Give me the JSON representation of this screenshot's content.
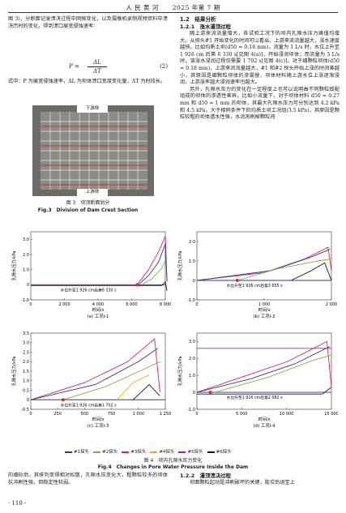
{
  "header": {
    "journal": "人 民 黄 河",
    "issue": "2025 年第 7 期"
  },
  "left_col": {
    "p1": "图 3)，分断面记录溃决过程中网格变化，以及摄像机录制视频资料中溃决历时的变化，得到溃口展宽侵蚀速率：",
    "formula_lhs": "P =",
    "formula_num": "ΔL",
    "formula_den": "ΔT",
    "formula_no": "(2)",
    "p2": "式中：P 为展宽侵蚀速率，ΔL 为坝体溃口宽度变化量，ΔT 为时段长。"
  },
  "fig3": {
    "label_top": "下游侧",
    "label_bottom": "上游侧",
    "cap_cn": "图 3　坝顶断面划分",
    "cap_en": "Fig.3　Division of Dam Crest Section"
  },
  "right_col": {
    "h1": "1.2　结果分析",
    "h2": "1.2.1　涨水漫顶过程",
    "p1": "随上游来流流量增大，各试验工况下的坝内孔隙水压力峰值均增大。从探头#1 开始变化的时间可以看出，上游来流流量越大，涨水速度越快。比如均质土坝(d50 = 0.18 mm)，流量为 1 L/s 时，水位上升至 1 926 cm 后第 6 330 s[见图 4(a)]，开始浸润坝体；而流量为 5 L/s 时，该涨水浸润过程仅需要 1 702 s[见图 4(c)]。对于细颗粒坝体(d50 = 0.18 mm)，上游来流流量越大，#1 和#2 探头开始上涨的时间差越小，其原因是细颗粒坝体的渗漏慢，坝体材料随上游水位上涨逐渐浸润，上游涨率越大浸润速率也越大。",
    "p2": "另外，孔隙水压力的变化在一定程度上也可以说明由不同颗粒级配组成的坝体的渗透性差异，比如小流量下，对于坝体材料 d50 = 0.27 mm 和 d50 = 1 mm 的坝体，其最大孔隙水压力可分别达到 4.2 kPa 和 4.5 kPa，大于相同条件下的均质土坝工况组(3.5 kPa)，其原因是颗粒较粗的坝体透水性强，水流淘刷掉颗粒间"
  },
  "fig4": {
    "cap_cn": "图 4　坝内孔隙水压力变化",
    "cap_en": "Fig.4　Changes in Pore Water Pressure Inside the Dam",
    "legend": [
      "#1探头",
      "#2探头",
      "#3探头",
      "#4探头",
      "#5探头",
      "#6探头"
    ],
    "legend_colors": [
      "#2a3b8f",
      "#7cb342",
      "#e91e63",
      "#f5a623",
      "#9c27b0",
      "#111111"
    ]
  },
  "chart_data": [
    {
      "type": "line",
      "id": "a",
      "caption": "(a) 工况Ⅰ-1",
      "annotation": "水位升至1 926 cm后第6 330 s",
      "xlabel": "时间/s",
      "ylabel": "孔隙水压力/kPa",
      "xlim": [
        0,
        8000
      ],
      "ylim": [
        -1.0,
        3.5
      ],
      "xticks": [
        "0",
        "2 000",
        "4 000",
        "6 000",
        "8 000"
      ],
      "yticks": [
        "-1.0",
        "0",
        "1.0",
        "2.0",
        "3.0"
      ],
      "marker_x": 6330,
      "series": [
        {
          "color": "#e91e63",
          "points": [
            [
              0,
              0
            ],
            [
              6330,
              0
            ],
            [
              7000,
              1.0
            ],
            [
              7600,
              2.2
            ],
            [
              8000,
              3.2
            ],
            [
              8100,
              0.3
            ]
          ]
        },
        {
          "color": "#2a3b8f",
          "points": [
            [
              6400,
              0
            ],
            [
              7000,
              0.6
            ],
            [
              7600,
              1.5
            ],
            [
              8000,
              2.7
            ],
            [
              8100,
              0.2
            ]
          ]
        },
        {
          "color": "#7cb342",
          "points": [
            [
              6600,
              0
            ],
            [
              7200,
              0.4
            ],
            [
              7800,
              1.1
            ],
            [
              8000,
              1.6
            ]
          ]
        },
        {
          "color": "#111111",
          "points": [
            [
              0,
              -0.05
            ],
            [
              7800,
              -0.05
            ],
            [
              8000,
              0.2
            ],
            [
              8100,
              -0.4
            ]
          ]
        }
      ]
    },
    {
      "type": "line",
      "id": "b",
      "caption": "(b) 工况Ⅰ-2",
      "annotation": "水位升至1 926 cm后第3 655 s",
      "xlabel": "时间/s",
      "ylabel": "孔隙水压力/kPa",
      "xlim": [
        0,
        2000
      ],
      "ylim": [
        -1.0,
        2.5
      ],
      "xticks": [
        "0",
        "1 000",
        "2 000"
      ],
      "yticks": [
        "-1.0",
        "0",
        "1.0",
        "2.0"
      ],
      "marker_x": 600,
      "series": [
        {
          "color": "#e91e63",
          "points": [
            [
              0,
              0
            ],
            [
              1000,
              0.4
            ],
            [
              1600,
              1.1
            ],
            [
              1950,
              1.7
            ],
            [
              2000,
              0.5
            ]
          ]
        },
        {
          "color": "#2a3b8f",
          "points": [
            [
              0,
              0
            ],
            [
              1100,
              0.5
            ],
            [
              1700,
              1.2
            ],
            [
              1980,
              1.6
            ]
          ]
        },
        {
          "color": "#7cb342",
          "points": [
            [
              600,
              0
            ],
            [
              1200,
              0.6
            ],
            [
              1800,
              1.0
            ],
            [
              2000,
              1.1
            ]
          ]
        },
        {
          "color": "#111111",
          "points": [
            [
              1400,
              0
            ],
            [
              1700,
              0.5
            ],
            [
              1900,
              0.9
            ],
            [
              2000,
              0.0
            ]
          ]
        }
      ]
    },
    {
      "type": "line",
      "id": "c",
      "caption": "(c) 工况Ⅰ-3",
      "annotation": "水位升至1 926 cm后第1 702 s",
      "xlabel": "时间/s",
      "ylabel": "孔隙水压力/kPa",
      "xlim": [
        0,
        1250
      ],
      "ylim": [
        -0.5,
        3.5
      ],
      "xticks": [
        "0",
        "250",
        "500",
        "750",
        "1 000",
        "1 250"
      ],
      "yticks": [
        "-0.5",
        "0",
        "0.5",
        "1.0",
        "1.5",
        "2.0",
        "2.5",
        "3.0",
        "3.5"
      ],
      "marker_x": 300,
      "series": [
        {
          "color": "#e91e63",
          "points": [
            [
              0,
              0
            ],
            [
              500,
              0.9
            ],
            [
              900,
              2.0
            ],
            [
              1150,
              3.2
            ],
            [
              1200,
              0.4
            ]
          ]
        },
        {
          "color": "#2a3b8f",
          "points": [
            [
              0,
              0
            ],
            [
              600,
              0.8
            ],
            [
              1000,
              2.0
            ],
            [
              1180,
              2.7
            ]
          ]
        },
        {
          "color": "#7cb342",
          "points": [
            [
              300,
              0
            ],
            [
              700,
              0.7
            ],
            [
              1050,
              1.6
            ],
            [
              1200,
              2.0
            ]
          ]
        },
        {
          "color": "#f5a623",
          "points": [
            [
              800,
              0
            ],
            [
              950,
              0.9
            ],
            [
              1100,
              1.3
            ]
          ]
        },
        {
          "color": "#111111",
          "points": [
            [
              950,
              0
            ],
            [
              1100,
              0.8
            ],
            [
              1200,
              0.2
            ]
          ]
        }
      ]
    },
    {
      "type": "line",
      "id": "d",
      "caption": "(d) 工况Ⅰ-4",
      "annotation": "水位升至1 926 cm后第2 082 s",
      "xlabel": "时间/s",
      "ylabel": "孔隙水压力/kPa",
      "xlim": [
        0,
        15000
      ],
      "ylim": [
        -1.0,
        3.5
      ],
      "xticks": [
        "0",
        "5 000",
        "10 000",
        "15 000"
      ],
      "yticks": [
        "-1.0",
        "0",
        "1.0",
        "2.0",
        "3.0"
      ],
      "marker_x": 1500,
      "series": [
        {
          "color": "#e91e63",
          "points": [
            [
              0,
              0
            ],
            [
              5000,
              0.9
            ],
            [
              10000,
              1.8
            ],
            [
              14500,
              3.0
            ],
            [
              15000,
              0.3
            ]
          ]
        },
        {
          "color": "#2a3b8f",
          "points": [
            [
              0,
              0
            ],
            [
              6000,
              0.8
            ],
            [
              11000,
              1.7
            ],
            [
              14800,
              2.7
            ]
          ]
        },
        {
          "color": "#7cb342",
          "points": [
            [
              2000,
              0
            ],
            [
              8000,
              0.9
            ],
            [
              13000,
              1.9
            ],
            [
              15000,
              2.2
            ]
          ]
        },
        {
          "color": "#9c27b0",
          "points": [
            [
              0,
              2.6
            ],
            [
              15000,
              2.6
            ]
          ]
        },
        {
          "color": "#111111",
          "points": [
            [
              0,
              -0.1
            ],
            [
              14000,
              -0.1
            ],
            [
              15000,
              0.3
            ]
          ]
        }
      ]
    }
  ],
  "bottom": {
    "left": "的细砂后，其排列变得相对松散，孔隙水压变化大，粗颗粒较多的坝体抗冲刷性强，但稳定性较弱。",
    "right_h": "1.2.2　漫顶溃决过程",
    "right_p": "坝面颗粒起动是冲刷破坏的关键，陡坎后退至上"
  },
  "page_number": "· 110 ·"
}
